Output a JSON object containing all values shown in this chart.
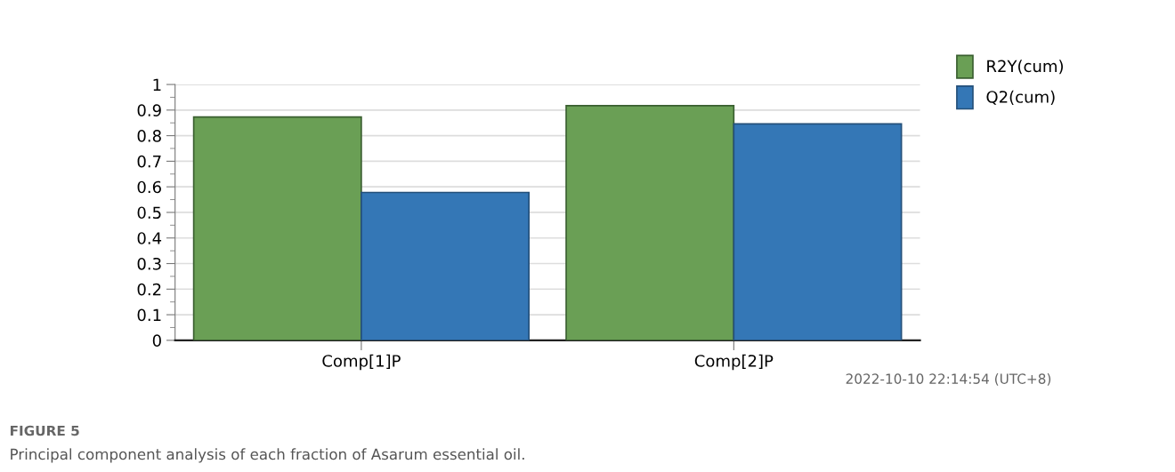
{
  "chart_data": {
    "type": "bar",
    "categories": [
      "Comp[1]P",
      "Comp[2]P"
    ],
    "series": [
      {
        "name": "R2Y(cum)",
        "color": "#6a9f55",
        "values": [
          0.873,
          0.917
        ]
      },
      {
        "name": "Q2(cum)",
        "color": "#3477b6",
        "values": [
          0.578,
          0.846
        ]
      }
    ],
    "ylim": [
      0,
      1
    ],
    "yticks": [
      0,
      0.1,
      0.2,
      0.3,
      0.4,
      0.5,
      0.6,
      0.7,
      0.8,
      0.9,
      1
    ],
    "grid": "y",
    "legend": "top right",
    "annotations": [
      "2022-10-10 22:14:54 (UTC+8)",
      "FIGURE 5",
      "Principal component analysis of each fraction of Asarum essential oil."
    ]
  }
}
